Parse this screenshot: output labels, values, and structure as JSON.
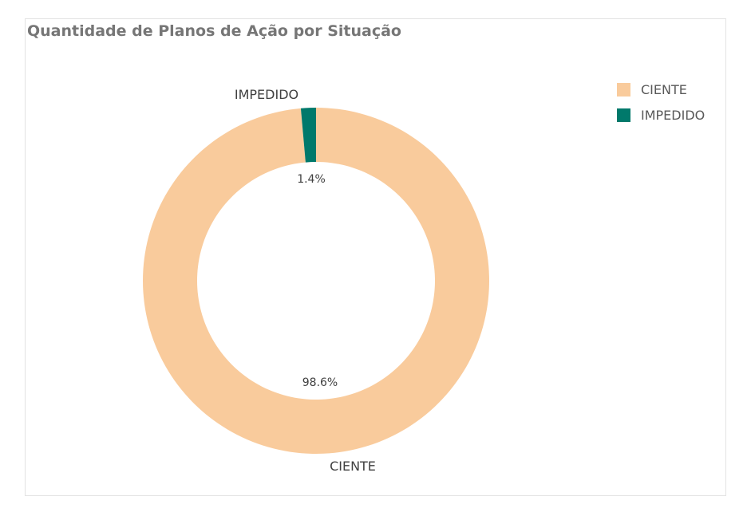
{
  "chart_data": {
    "type": "pie",
    "title": "Quantidade de Planos de Ação por Situação",
    "donut": true,
    "legend_position": "top-right",
    "categories": [
      "CIENTE",
      "IMPEDIDO"
    ],
    "values": [
      98.6,
      1.4
    ],
    "value_labels": [
      "98.6%",
      "1.4%"
    ],
    "colors": [
      "#f9cb9c",
      "#00796b"
    ]
  }
}
